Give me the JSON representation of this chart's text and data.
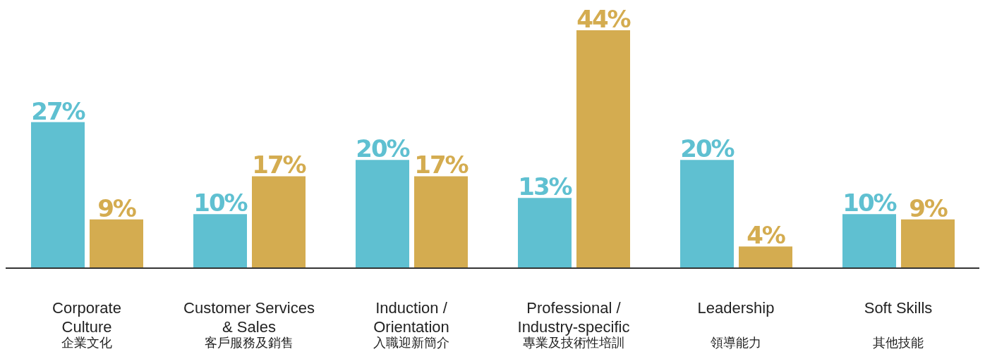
{
  "chart_data": {
    "type": "bar",
    "categories": [
      "Corporate\nCulture\n企業文化",
      "Customer Services\n& Sales\n客戶服務及銷售",
      "Induction /\nOrientation\n入職迎新簡介",
      "Professional /\nIndustry-specific\n專業及技術性培訓",
      "Leadership\n領導能力",
      "Soft Skills\n其他技能"
    ],
    "series": [
      {
        "color": "#5fc0d1",
        "values": [
          27,
          10,
          20,
          13,
          20,
          10
        ],
        "value_labels": [
          "27%",
          "10%",
          "20%",
          "13%",
          "20%",
          "10%"
        ]
      },
      {
        "color": "#d4ac50",
        "values": [
          9,
          17,
          17,
          44,
          4,
          9
        ],
        "value_labels": [
          "9%",
          "17%",
          "17%",
          "44%",
          "4%",
          "9%"
        ]
      }
    ],
    "grid": false,
    "legend": false
  }
}
